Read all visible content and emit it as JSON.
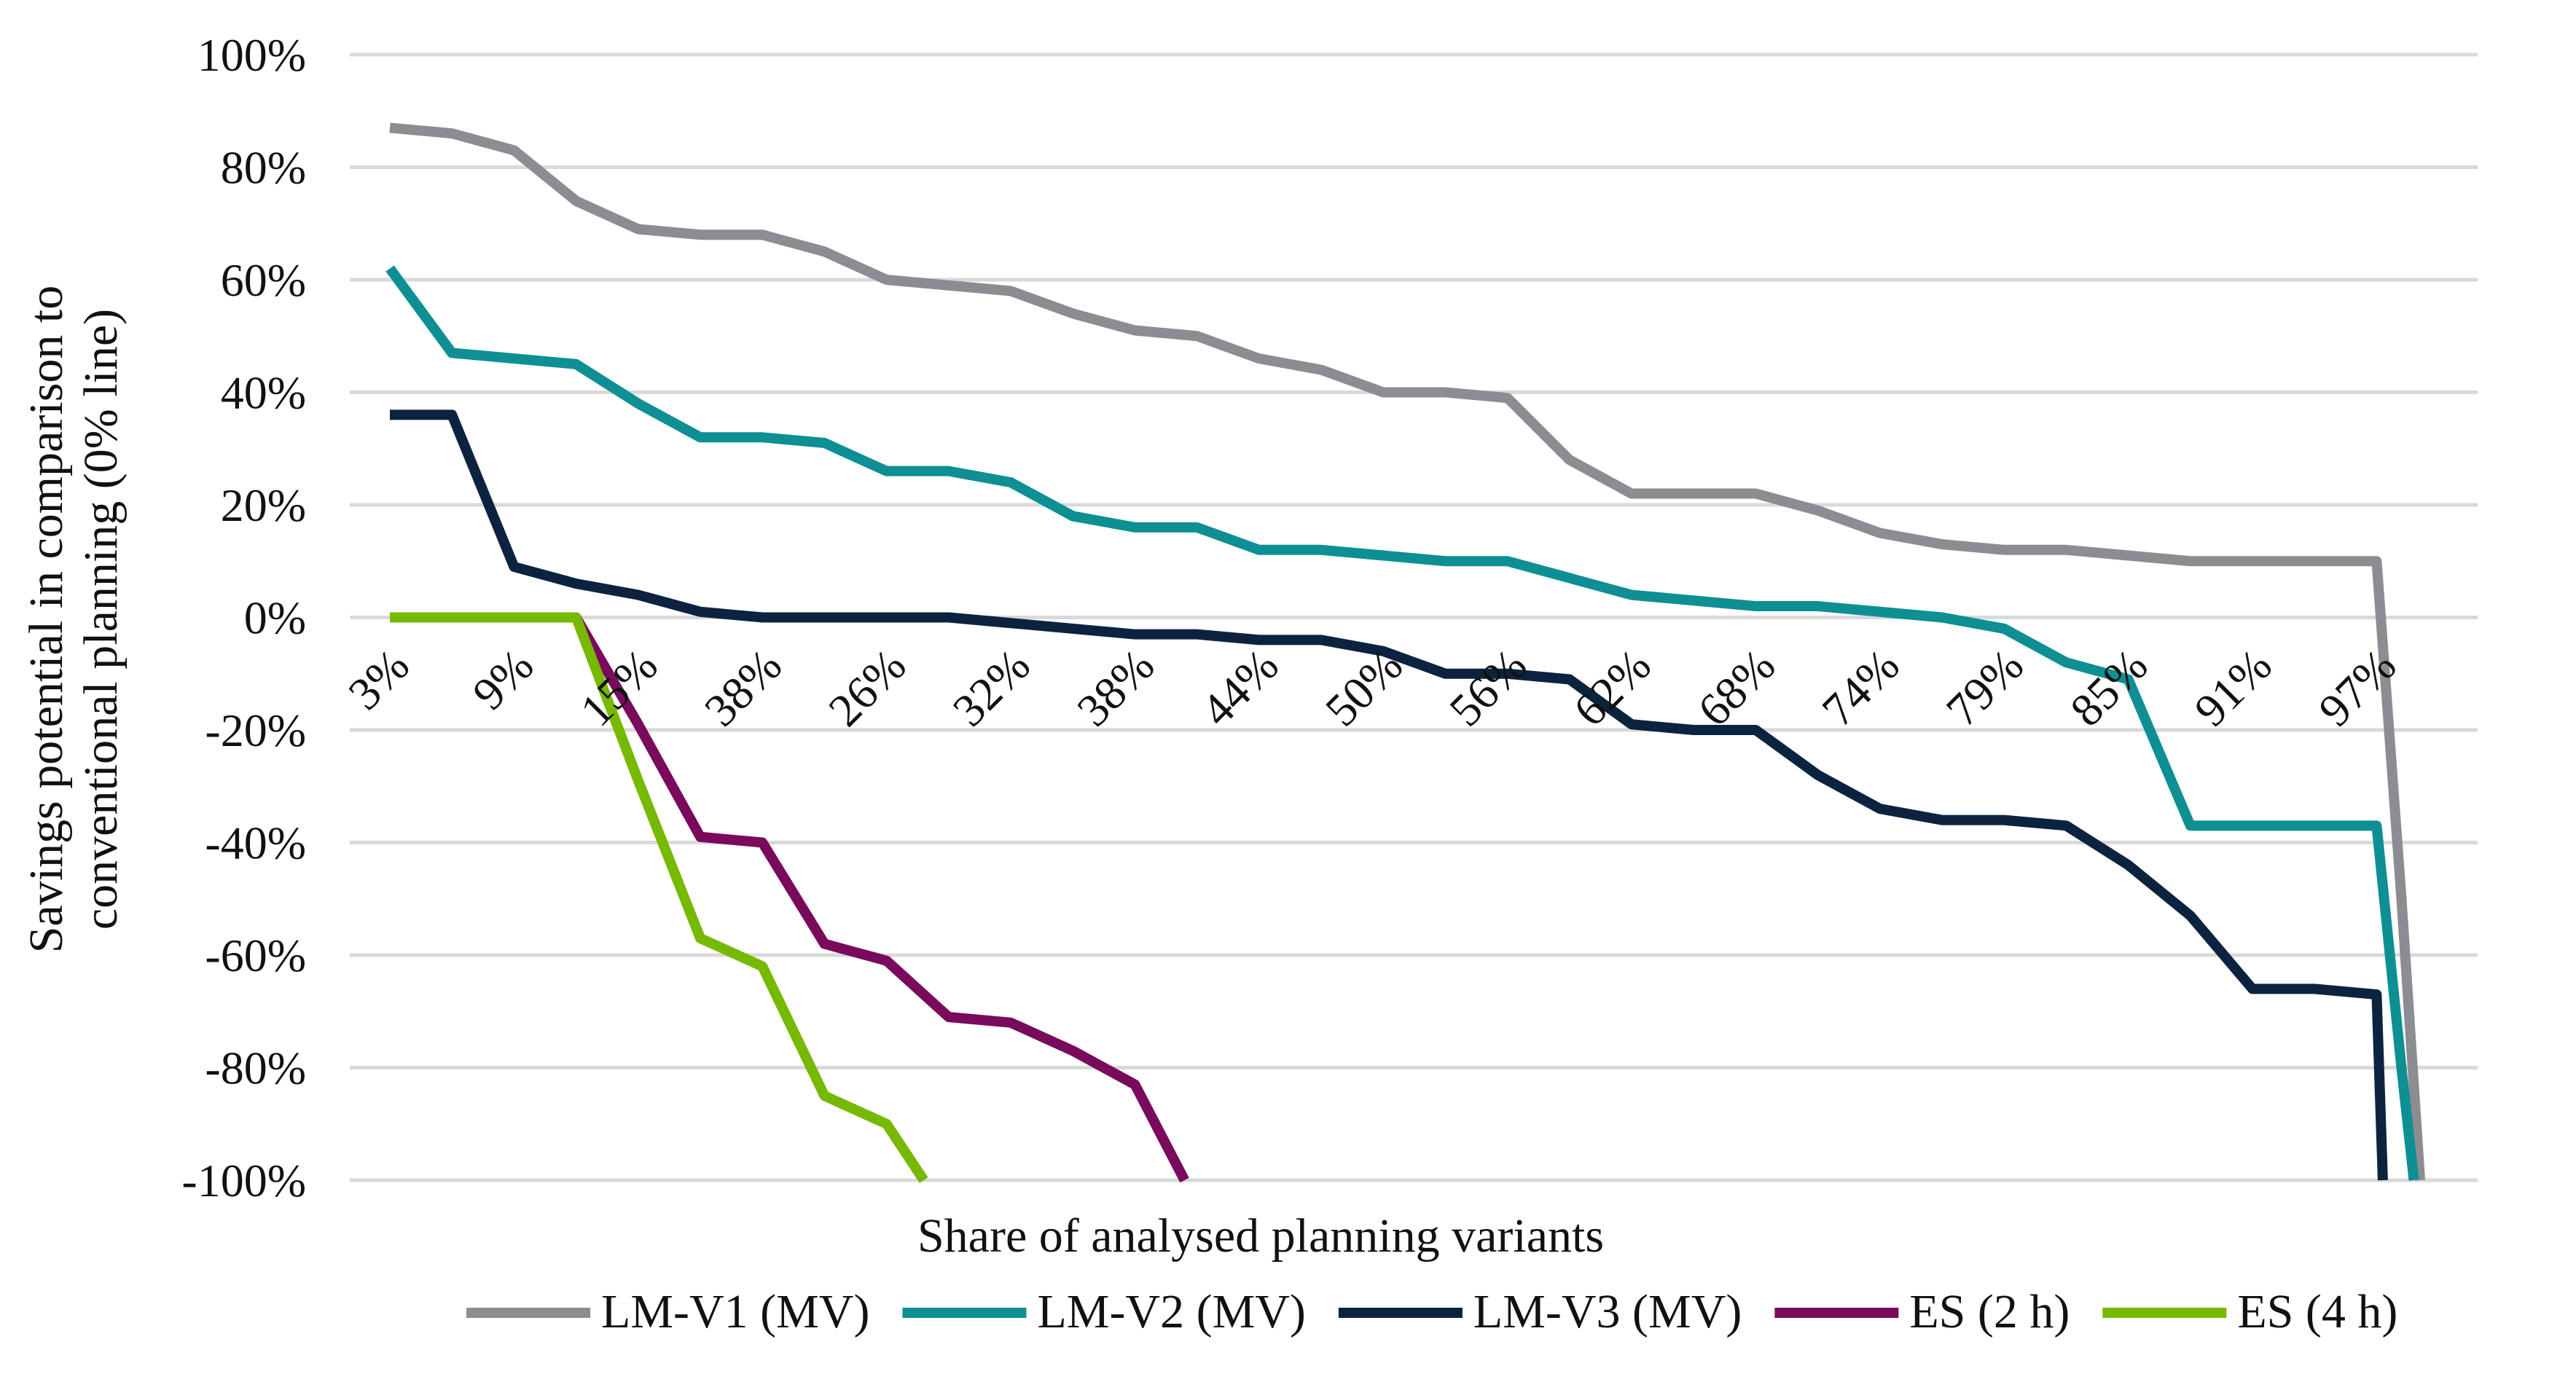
{
  "chart_data": {
    "type": "line",
    "title": "",
    "xlabel": "Share of analysed planning variants",
    "ylabel_lines": [
      "Savings potential in comparison to",
      "conventional planning (0% line)"
    ],
    "ylim": [
      -100,
      100
    ],
    "yticks": [
      100,
      80,
      60,
      40,
      20,
      0,
      -20,
      -40,
      -60,
      -80,
      -100
    ],
    "ytick_labels": [
      "100%",
      "80%",
      "60%",
      "40%",
      "20%",
      "0%",
      "-20%",
      "-40%",
      "-60%",
      "-80%",
      "-100%"
    ],
    "grid": true,
    "legend_position": "bottom",
    "x_count": 34,
    "x_tick_labels": [
      {
        "index": 0,
        "label": "3%"
      },
      {
        "index": 2,
        "label": "9%"
      },
      {
        "index": 4,
        "label": "15%"
      },
      {
        "index": 6,
        "label": "38%"
      },
      {
        "index": 8,
        "label": "26%"
      },
      {
        "index": 10,
        "label": "32%"
      },
      {
        "index": 12,
        "label": "38%"
      },
      {
        "index": 14,
        "label": "44%"
      },
      {
        "index": 16,
        "label": "50%"
      },
      {
        "index": 18,
        "label": "56%"
      },
      {
        "index": 20,
        "label": "62%"
      },
      {
        "index": 22,
        "label": "68%"
      },
      {
        "index": 24,
        "label": "74%"
      },
      {
        "index": 26,
        "label": "79%"
      },
      {
        "index": 28,
        "label": "85%"
      },
      {
        "index": 30,
        "label": "91%"
      },
      {
        "index": 32,
        "label": "97%"
      }
    ],
    "series": [
      {
        "name": "LM-V1 (MV)",
        "color": "#8c8c93",
        "x": [
          0,
          1,
          2,
          3,
          4,
          5,
          6,
          7,
          8,
          9,
          10,
          11,
          12,
          13,
          14,
          15,
          16,
          17,
          18,
          19,
          20,
          21,
          22,
          23,
          24,
          25,
          26,
          27,
          28,
          29,
          30,
          31,
          32,
          32.4,
          32.7
        ],
        "values": [
          87,
          86,
          83,
          74,
          69,
          68,
          68,
          65,
          60,
          59,
          58,
          54,
          51,
          50,
          46,
          44,
          40,
          40,
          39,
          28,
          22,
          22,
          22,
          19,
          15,
          13,
          12,
          12,
          11,
          10,
          10,
          10,
          10,
          -50,
          -100
        ]
      },
      {
        "name": "LM-V2 (MV)",
        "color": "#0e8f94",
        "x": [
          0,
          1,
          2,
          3,
          4,
          5,
          6,
          7,
          8,
          9,
          10,
          11,
          12,
          13,
          14,
          15,
          16,
          17,
          18,
          19,
          20,
          21,
          22,
          23,
          24,
          25,
          26,
          27,
          28,
          29,
          30,
          31,
          32,
          32.4,
          32.6
        ],
        "values": [
          62,
          47,
          46,
          45,
          38,
          32,
          32,
          31,
          26,
          26,
          24,
          18,
          16,
          16,
          12,
          12,
          11,
          10,
          10,
          7,
          4,
          3,
          2,
          2,
          1,
          0,
          -2,
          -8,
          -11,
          -37,
          -37,
          -37,
          -37,
          -80,
          -100
        ]
      },
      {
        "name": "LM-V3 (MV)",
        "color": "#0c2340",
        "x": [
          0,
          1,
          2,
          3,
          4,
          5,
          6,
          7,
          8,
          9,
          10,
          11,
          12,
          13,
          14,
          15,
          16,
          17,
          18,
          19,
          20,
          21,
          22,
          23,
          24,
          25,
          26,
          27,
          28,
          29,
          30,
          31,
          32,
          32.1
        ],
        "values": [
          36,
          36,
          9,
          6,
          4,
          1,
          0,
          0,
          0,
          0,
          -1,
          -2,
          -3,
          -3,
          -4,
          -4,
          -6,
          -10,
          -10,
          -11,
          -19,
          -20,
          -20,
          -28,
          -34,
          -36,
          -36,
          -37,
          -44,
          -53,
          -66,
          -66,
          -67,
          -100
        ]
      },
      {
        "name": "ES (2 h)",
        "color": "#7a0a5c",
        "x": [
          0,
          1,
          2,
          3,
          4,
          5,
          6,
          7,
          8,
          9,
          10,
          11,
          12,
          12.8
        ],
        "values": [
          0,
          0,
          0,
          0,
          -19,
          -39,
          -40,
          -58,
          -61,
          -71,
          -72,
          -77,
          -83,
          -100
        ]
      },
      {
        "name": "ES (4 h)",
        "color": "#76b900",
        "x": [
          0,
          1,
          2,
          3,
          4,
          5,
          6,
          7,
          8,
          8.6
        ],
        "values": [
          0,
          0,
          0,
          0,
          -29,
          -57,
          -62,
          -85,
          -90,
          -100
        ]
      }
    ]
  }
}
